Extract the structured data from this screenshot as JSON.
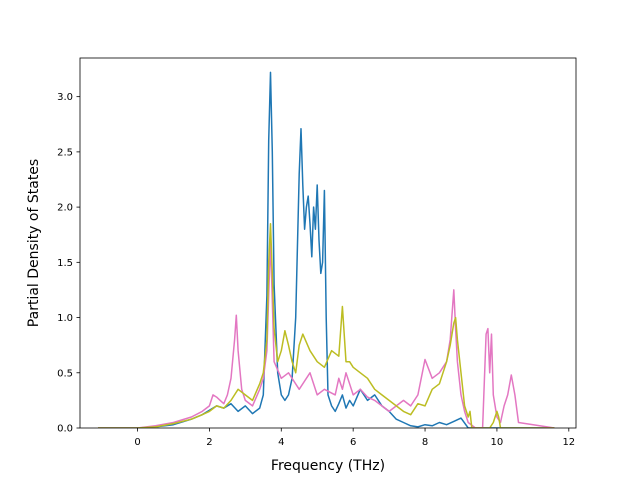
{
  "chart_data": {
    "type": "line",
    "title": "",
    "xlabel": "Frequency (THz)",
    "ylabel": "Partial Density of States",
    "xlim": [
      -1.6,
      12.2
    ],
    "ylim": [
      0,
      3.35
    ],
    "xticks": [
      0,
      2,
      4,
      6,
      8,
      10,
      12
    ],
    "yticks": [
      0.0,
      0.5,
      1.0,
      1.5,
      2.0,
      2.5,
      3.0
    ],
    "xtick_labels": [
      "0",
      "2",
      "4",
      "6",
      "8",
      "10",
      "12"
    ],
    "ytick_labels": [
      "0.0",
      "0.5",
      "1.0",
      "1.5",
      "2.0",
      "2.5",
      "3.0"
    ],
    "grid": false,
    "legend": "none",
    "series": [
      {
        "color": "#1f77b4",
        "x": [
          -1.1,
          0,
          0.5,
          1.0,
          1.5,
          1.8,
          2.0,
          2.2,
          2.4,
          2.6,
          2.8,
          3.0,
          3.2,
          3.4,
          3.5,
          3.6,
          3.65,
          3.7,
          3.75,
          3.8,
          3.9,
          4.0,
          4.1,
          4.2,
          4.3,
          4.4,
          4.5,
          4.55,
          4.6,
          4.65,
          4.7,
          4.75,
          4.8,
          4.85,
          4.9,
          4.95,
          5.0,
          5.05,
          5.1,
          5.15,
          5.2,
          5.25,
          5.3,
          5.4,
          5.5,
          5.6,
          5.7,
          5.8,
          5.9,
          6.0,
          6.2,
          6.4,
          6.6,
          6.8,
          7.0,
          7.2,
          7.4,
          7.6,
          7.8,
          8.0,
          8.2,
          8.4,
          8.6,
          8.8,
          9.0,
          9.2,
          9.4,
          11.6
        ],
        "y": [
          0,
          0,
          0.01,
          0.03,
          0.08,
          0.12,
          0.16,
          0.2,
          0.18,
          0.22,
          0.15,
          0.2,
          0.13,
          0.18,
          0.3,
          1.2,
          2.6,
          3.22,
          2.5,
          1.3,
          0.5,
          0.3,
          0.25,
          0.3,
          0.45,
          1.0,
          2.3,
          2.71,
          2.2,
          1.8,
          2.0,
          2.1,
          1.85,
          1.55,
          2.0,
          1.8,
          2.2,
          1.7,
          1.4,
          1.5,
          2.15,
          1.0,
          0.3,
          0.2,
          0.15,
          0.22,
          0.3,
          0.18,
          0.25,
          0.2,
          0.35,
          0.25,
          0.3,
          0.2,
          0.15,
          0.08,
          0.05,
          0.02,
          0.01,
          0.03,
          0.02,
          0.05,
          0.03,
          0.06,
          0.09,
          0.0,
          0.0,
          0.0
        ]
      },
      {
        "color": "#e377c2",
        "x": [
          -1.1,
          0,
          0.5,
          1.0,
          1.5,
          1.8,
          2.0,
          2.1,
          2.2,
          2.3,
          2.4,
          2.5,
          2.6,
          2.7,
          2.75,
          2.8,
          2.9,
          3.0,
          3.2,
          3.4,
          3.5,
          3.6,
          3.7,
          3.8,
          4.0,
          4.2,
          4.5,
          4.8,
          5.0,
          5.2,
          5.5,
          5.6,
          5.7,
          5.8,
          5.9,
          6.0,
          6.2,
          6.4,
          6.6,
          6.8,
          7.0,
          7.2,
          7.4,
          7.6,
          7.8,
          8.0,
          8.2,
          8.4,
          8.6,
          8.7,
          8.8,
          8.85,
          8.9,
          9.0,
          9.1,
          9.2,
          9.4,
          9.6,
          9.7,
          9.75,
          9.8,
          9.85,
          9.9,
          10.0,
          10.1,
          10.2,
          10.3,
          10.4,
          10.5,
          10.6,
          11.6
        ],
        "y": [
          0,
          0,
          0.02,
          0.05,
          0.1,
          0.15,
          0.2,
          0.3,
          0.28,
          0.25,
          0.22,
          0.3,
          0.45,
          0.8,
          1.02,
          0.7,
          0.35,
          0.25,
          0.2,
          0.35,
          0.45,
          0.7,
          1.7,
          0.6,
          0.45,
          0.5,
          0.35,
          0.5,
          0.3,
          0.35,
          0.3,
          0.45,
          0.35,
          0.5,
          0.4,
          0.3,
          0.35,
          0.28,
          0.25,
          0.2,
          0.15,
          0.2,
          0.25,
          0.2,
          0.3,
          0.62,
          0.45,
          0.5,
          0.6,
          0.8,
          1.25,
          0.9,
          0.6,
          0.3,
          0.15,
          0.05,
          0.0,
          0.0,
          0.85,
          0.9,
          0.5,
          0.85,
          0.3,
          0.1,
          0.05,
          0.2,
          0.3,
          0.48,
          0.3,
          0.05,
          0.0
        ]
      },
      {
        "color": "#bcbd22",
        "x": [
          -1.1,
          0,
          0.5,
          1.0,
          1.5,
          1.8,
          2.0,
          2.2,
          2.4,
          2.6,
          2.8,
          3.0,
          3.2,
          3.4,
          3.5,
          3.6,
          3.65,
          3.7,
          3.75,
          3.8,
          3.9,
          4.0,
          4.1,
          4.2,
          4.3,
          4.4,
          4.5,
          4.6,
          4.8,
          5.0,
          5.2,
          5.4,
          5.6,
          5.7,
          5.8,
          5.9,
          6.0,
          6.2,
          6.4,
          6.6,
          6.8,
          7.0,
          7.2,
          7.4,
          7.6,
          7.8,
          8.0,
          8.2,
          8.4,
          8.6,
          8.7,
          8.8,
          8.85,
          8.9,
          9.0,
          9.1,
          9.2,
          9.25,
          9.3,
          9.8,
          9.9,
          10.0,
          10.05,
          10.1,
          11.6
        ],
        "y": [
          0,
          0,
          0.01,
          0.04,
          0.08,
          0.12,
          0.15,
          0.2,
          0.18,
          0.25,
          0.35,
          0.3,
          0.25,
          0.4,
          0.5,
          0.8,
          1.5,
          1.85,
          1.4,
          0.9,
          0.6,
          0.7,
          0.88,
          0.75,
          0.6,
          0.5,
          0.75,
          0.85,
          0.7,
          0.6,
          0.55,
          0.7,
          0.65,
          1.1,
          0.6,
          0.6,
          0.55,
          0.5,
          0.45,
          0.35,
          0.3,
          0.25,
          0.2,
          0.15,
          0.12,
          0.22,
          0.2,
          0.35,
          0.4,
          0.6,
          0.75,
          0.95,
          1.0,
          0.8,
          0.5,
          0.2,
          0.1,
          0.15,
          0.0,
          0.0,
          0.05,
          0.15,
          0.1,
          0.0,
          0.0
        ]
      }
    ]
  }
}
